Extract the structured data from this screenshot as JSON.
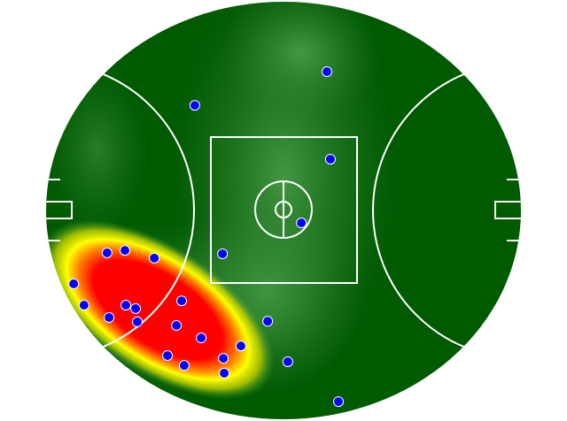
{
  "chart_data": {
    "type": "heatmap",
    "title": "",
    "xlabel": "",
    "ylabel": "",
    "field": "AFL oval",
    "xlim": [
      -82.5,
      82.5
    ],
    "ylim": [
      -67.5,
      67.5
    ],
    "grid": false,
    "colors": {
      "field": "#005a00",
      "field_light": "#3a9a3a",
      "heat_low": "#ffff00",
      "heat_high": "#ff0000",
      "point": "#0000ff",
      "point_outline": "#ffffff",
      "lines": "#ffffff"
    },
    "points": [
      {
        "x": 15.1,
        "y": 44.9
      },
      {
        "x": -30.8,
        "y": 34.0
      },
      {
        "x": 16.3,
        "y": 16.6
      },
      {
        "x": 6.2,
        "y": -4.0
      },
      {
        "x": -21.2,
        "y": -14.0
      },
      {
        "x": -61.3,
        "y": -13.7
      },
      {
        "x": -55.1,
        "y": -12.9
      },
      {
        "x": -44.9,
        "y": -15.4
      },
      {
        "x": -72.9,
        "y": -23.7
      },
      {
        "x": -69.3,
        "y": -30.6
      },
      {
        "x": -54.8,
        "y": -30.6
      },
      {
        "x": -51.4,
        "y": -31.7
      },
      {
        "x": -60.6,
        "y": -34.6
      },
      {
        "x": -50.8,
        "y": -36.0
      },
      {
        "x": -35.4,
        "y": -29.2
      },
      {
        "x": -37.2,
        "y": -37.2
      },
      {
        "x": -28.6,
        "y": -41.2
      },
      {
        "x": -5.5,
        "y": -35.8
      },
      {
        "x": -14.8,
        "y": -43.8
      },
      {
        "x": -40.3,
        "y": -46.9
      },
      {
        "x": -34.5,
        "y": -50.1
      },
      {
        "x": -20.9,
        "y": -47.8
      },
      {
        "x": -20.6,
        "y": -52.6
      },
      {
        "x": 1.5,
        "y": -48.9
      },
      {
        "x": 19.1,
        "y": -61.8
      }
    ]
  }
}
